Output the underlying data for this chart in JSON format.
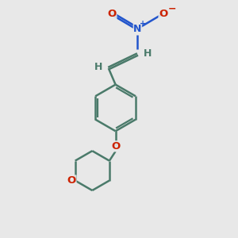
{
  "bg_color": "#e8e8e8",
  "bond_color": "#4a7a6a",
  "oxygen_color": "#cc2200",
  "nitrogen_color": "#2255cc",
  "h_color": "#4a7a6a",
  "line_width": 1.8,
  "figsize": [
    3.0,
    3.0
  ],
  "dpi": 100,
  "xlim": [
    0,
    10
  ],
  "ylim": [
    0,
    10
  ]
}
